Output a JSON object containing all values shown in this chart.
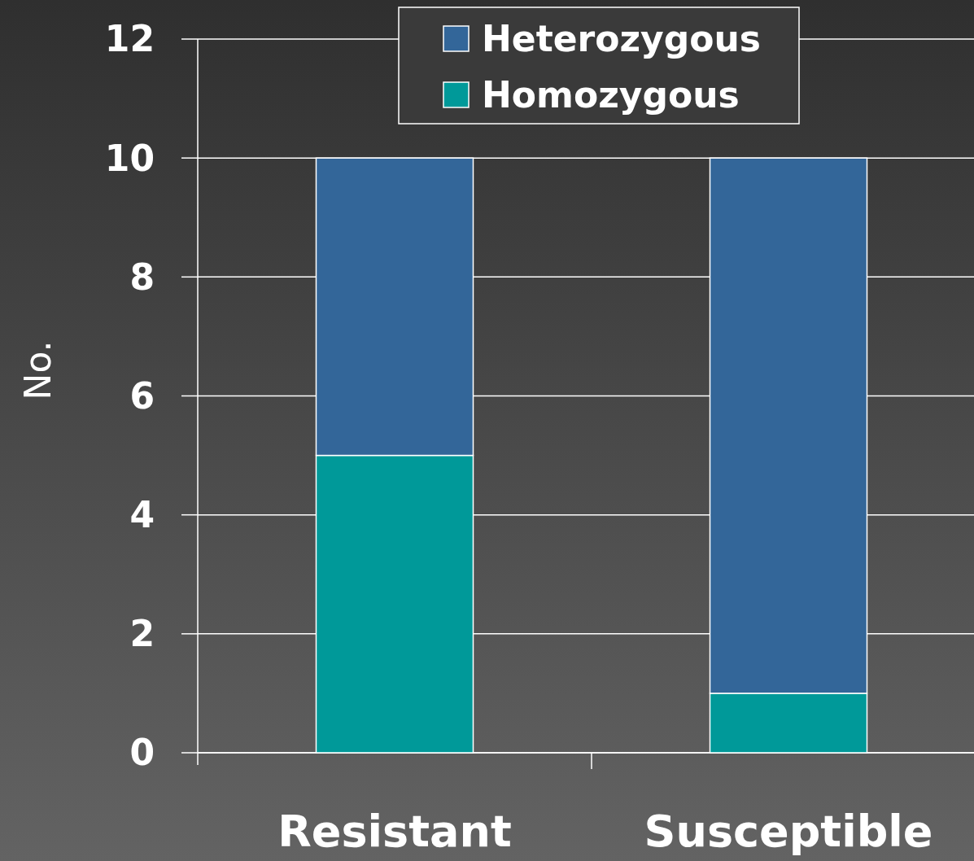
{
  "chart_data": {
    "type": "bar",
    "stacked": true,
    "categories": [
      "Resistant",
      "Susceptible"
    ],
    "ylabel": "No.",
    "series": [
      {
        "name": "Homozygous",
        "color": "#009999",
        "values": [
          5,
          1
        ]
      },
      {
        "name": "Heterozygous",
        "color": "#336699",
        "values": [
          5,
          9
        ]
      }
    ],
    "ylim": [
      0,
      12
    ],
    "yticks": [
      0,
      2,
      4,
      6,
      8,
      10,
      12
    ],
    "grid": "y",
    "legend": "top"
  }
}
